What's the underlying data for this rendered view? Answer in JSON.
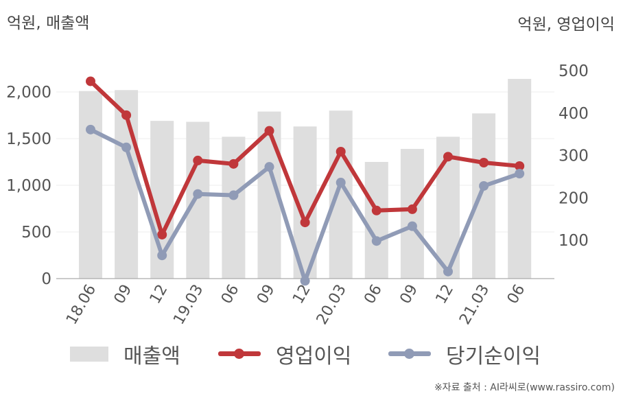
{
  "chart_data": {
    "type": "bar+line",
    "categories": [
      "18.06",
      "09",
      "12",
      "19.03",
      "06",
      "09",
      "12",
      "20.03",
      "06",
      "09",
      "12",
      "21.03",
      "06"
    ],
    "left_axis": {
      "unit": "억원, 매출액",
      "ylim": [
        0,
        2500
      ],
      "ticks": [
        "0",
        "500",
        "1,000",
        "1,500",
        "2,000"
      ],
      "tick_values": [
        0,
        500,
        1000,
        1500,
        2000
      ]
    },
    "right_axis": {
      "unit": "억원, 영업이익",
      "ylim": [
        0,
        500
      ],
      "ticks": [
        "100",
        "200",
        "300",
        "400",
        "500"
      ],
      "tick_values": [
        100,
        200,
        300,
        400,
        500
      ]
    },
    "series": [
      {
        "name": "매출액",
        "type": "bar",
        "axis": "left",
        "color": "#dedede",
        "values": [
          2010,
          2020,
          1690,
          1680,
          1520,
          1790,
          1630,
          1800,
          1250,
          1390,
          1520,
          1770,
          2140
        ]
      },
      {
        "name": "영업이익",
        "type": "line",
        "axis": "right",
        "color": "#c0373a",
        "values": [
          475,
          395,
          113,
          288,
          280,
          358,
          142,
          309,
          170,
          173,
          297,
          283,
          275
        ]
      },
      {
        "name": "당기순이익",
        "type": "line",
        "axis": "right",
        "color": "#909bb6",
        "values": [
          361,
          319,
          64,
          209,
          206,
          273,
          4,
          236,
          98,
          133,
          26,
          228,
          257
        ]
      }
    ],
    "grid": true,
    "legend_position": "bottom"
  },
  "source": "※자료 출처 : AI라씨로(www.rassiro.com)"
}
